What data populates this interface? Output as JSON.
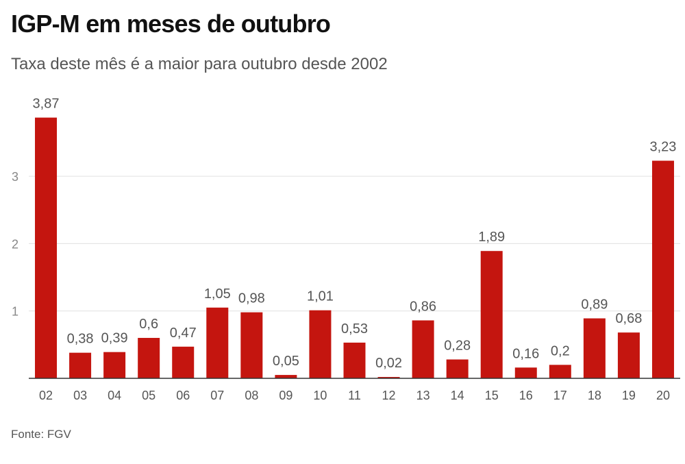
{
  "header": {
    "title": "IGP-M em meses de outubro",
    "subtitle": "Taxa deste mês é a maior para outubro desde 2002"
  },
  "footer": {
    "source": "Fonte: FGV"
  },
  "colors": {
    "bar": "#c4150f",
    "grid": "#e0e0e0",
    "axis": "#333333"
  },
  "chart_data": {
    "type": "bar",
    "categories": [
      "02",
      "03",
      "04",
      "05",
      "06",
      "07",
      "08",
      "09",
      "10",
      "11",
      "12",
      "13",
      "14",
      "15",
      "16",
      "17",
      "18",
      "19",
      "20"
    ],
    "values": [
      3.87,
      0.38,
      0.39,
      0.6,
      0.47,
      1.05,
      0.98,
      0.05,
      1.01,
      0.53,
      0.02,
      0.86,
      0.28,
      1.89,
      0.16,
      0.2,
      0.89,
      0.68,
      3.23
    ],
    "data_labels": [
      "3,87",
      "0,38",
      "0,39",
      "0,6",
      "0,47",
      "1,05",
      "0,98",
      "0,05",
      "1,01",
      "0,53",
      "0,02",
      "0,86",
      "0,28",
      "1,89",
      "0,16",
      "0,2",
      "0,89",
      "0,68",
      "3,23"
    ],
    "yticks": [
      1,
      2,
      3
    ],
    "ylim": [
      0,
      4.2
    ],
    "grid": true,
    "legend": "none"
  }
}
